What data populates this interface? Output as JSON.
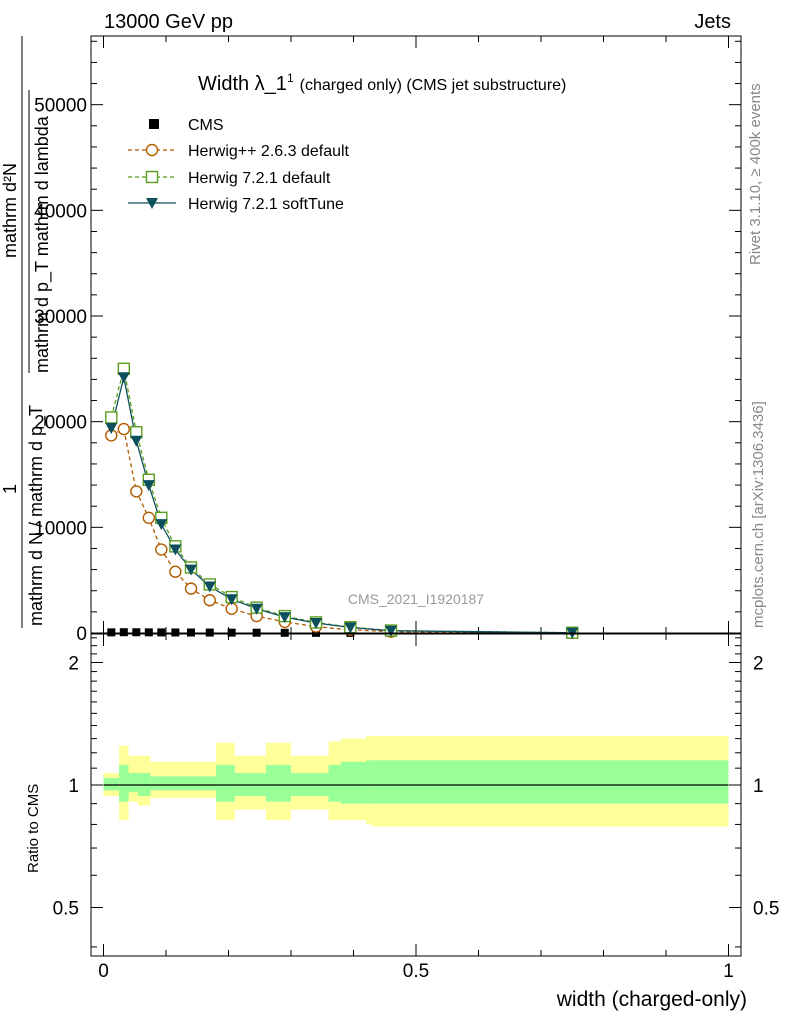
{
  "header": {
    "left": "13000 GeV pp",
    "right": "Jets"
  },
  "side_text": {
    "rivet": "Rivet 3.1.10, ≥ 400k events",
    "mcplots": "mcplots.cern.ch [arXiv:1306.3436]"
  },
  "watermark": "CMS_2021_I1920187",
  "colors": {
    "cms": "#000000",
    "herwig263": "#b35a00",
    "herwig721": "#5a9e1e",
    "softtune": "#0d4f5c",
    "band_yellow": "#ffff99",
    "band_green": "#99ff99"
  },
  "chart_data": [
    {
      "type": "line",
      "panel": "main",
      "title": "Width λ_1",
      "title_sup": "1",
      "title_suffix": "(charged only) (CMS jet substructure)",
      "ylabel_top": "mathrm d²N",
      "ylabel_mid": "mathrm d p_T mathrm d lambda",
      "ylabel_one": "1",
      "ylabel_bottom": "mathrm d N / mathrm d p_T",
      "xlim": [
        -0.02,
        1.02
      ],
      "ylim": [
        0,
        56500
      ],
      "yticks": [
        0,
        10000,
        20000,
        30000,
        40000,
        50000
      ],
      "ytick_labels": [
        "0",
        "10000",
        "20000",
        "30000",
        "40000",
        "50000"
      ],
      "legend_position": "top-left",
      "series": [
        {
          "name": "CMS",
          "marker": "square",
          "x": [
            0.0125,
            0.0325,
            0.0525,
            0.0725,
            0.0925,
            0.115,
            0.14,
            0.17,
            0.205,
            0.245,
            0.29,
            0.34,
            0.395,
            0.46,
            0.75
          ],
          "y": [
            60,
            75,
            70,
            60,
            55,
            50,
            45,
            40,
            33,
            27,
            20,
            14,
            9,
            5,
            1
          ]
        },
        {
          "name": "Herwig++ 2.6.3 default",
          "marker": "open-circle",
          "dashed": true,
          "x": [
            0.0125,
            0.0325,
            0.0525,
            0.0725,
            0.0925,
            0.115,
            0.14,
            0.17,
            0.205,
            0.245,
            0.29,
            0.34,
            0.395,
            0.46,
            0.75
          ],
          "y": [
            18700,
            19300,
            13400,
            10900,
            7900,
            5800,
            4200,
            3100,
            2300,
            1600,
            1050,
            600,
            300,
            130,
            15
          ]
        },
        {
          "name": "Herwig 7.2.1 default",
          "marker": "open-square",
          "dashed": true,
          "x": [
            0.0125,
            0.0325,
            0.0525,
            0.0725,
            0.0925,
            0.115,
            0.14,
            0.17,
            0.205,
            0.245,
            0.29,
            0.34,
            0.395,
            0.46,
            0.75
          ],
          "y": [
            20400,
            25000,
            19000,
            14500,
            10900,
            8200,
            6200,
            4600,
            3400,
            2400,
            1600,
            1000,
            550,
            230,
            25
          ]
        },
        {
          "name": "Herwig 7.2.1 softTune",
          "marker": "filled-triangle-down",
          "dashed": false,
          "x": [
            0.0125,
            0.0325,
            0.0525,
            0.0725,
            0.0925,
            0.115,
            0.14,
            0.17,
            0.205,
            0.245,
            0.29,
            0.34,
            0.395,
            0.46,
            0.75
          ],
          "y": [
            19400,
            24200,
            18200,
            14000,
            10300,
            7900,
            6000,
            4400,
            3200,
            2300,
            1500,
            950,
            520,
            210,
            22
          ]
        }
      ]
    },
    {
      "type": "area",
      "panel": "ratio",
      "ylabel": "Ratio to CMS",
      "xlabel": "width (charged-only)",
      "xlim": [
        -0.02,
        1.02
      ],
      "ylim": [
        0.38,
        2.35
      ],
      "log_scale_y": true,
      "yticks": [
        0.5,
        1,
        2
      ],
      "ytick_labels": [
        "0.5",
        "1",
        "2"
      ],
      "xticks": [
        0,
        0.5,
        1
      ],
      "xtick_labels": [
        "0",
        "0.5",
        "1"
      ],
      "bin_edges": [
        0.0,
        0.025,
        0.04,
        0.055,
        0.075,
        0.085,
        0.12,
        0.18,
        0.21,
        0.26,
        0.3,
        0.36,
        0.38,
        0.42,
        0.43,
        1.0
      ],
      "yellow_band": {
        "low": [
          0.94,
          0.82,
          0.91,
          0.89,
          0.93,
          0.93,
          0.93,
          0.82,
          0.87,
          0.82,
          0.87,
          0.82,
          0.82,
          0.8,
          0.79
        ],
        "high": [
          1.07,
          1.25,
          1.18,
          1.18,
          1.14,
          1.14,
          1.14,
          1.27,
          1.18,
          1.27,
          1.18,
          1.28,
          1.3,
          1.32,
          1.32
        ]
      },
      "green_band": {
        "low": [
          0.97,
          0.91,
          0.96,
          0.94,
          0.97,
          0.97,
          0.97,
          0.91,
          0.94,
          0.91,
          0.94,
          0.91,
          0.9,
          0.9,
          0.9
        ],
        "high": [
          1.04,
          1.12,
          1.07,
          1.07,
          1.05,
          1.05,
          1.05,
          1.12,
          1.07,
          1.12,
          1.07,
          1.12,
          1.14,
          1.15,
          1.15
        ]
      }
    }
  ]
}
